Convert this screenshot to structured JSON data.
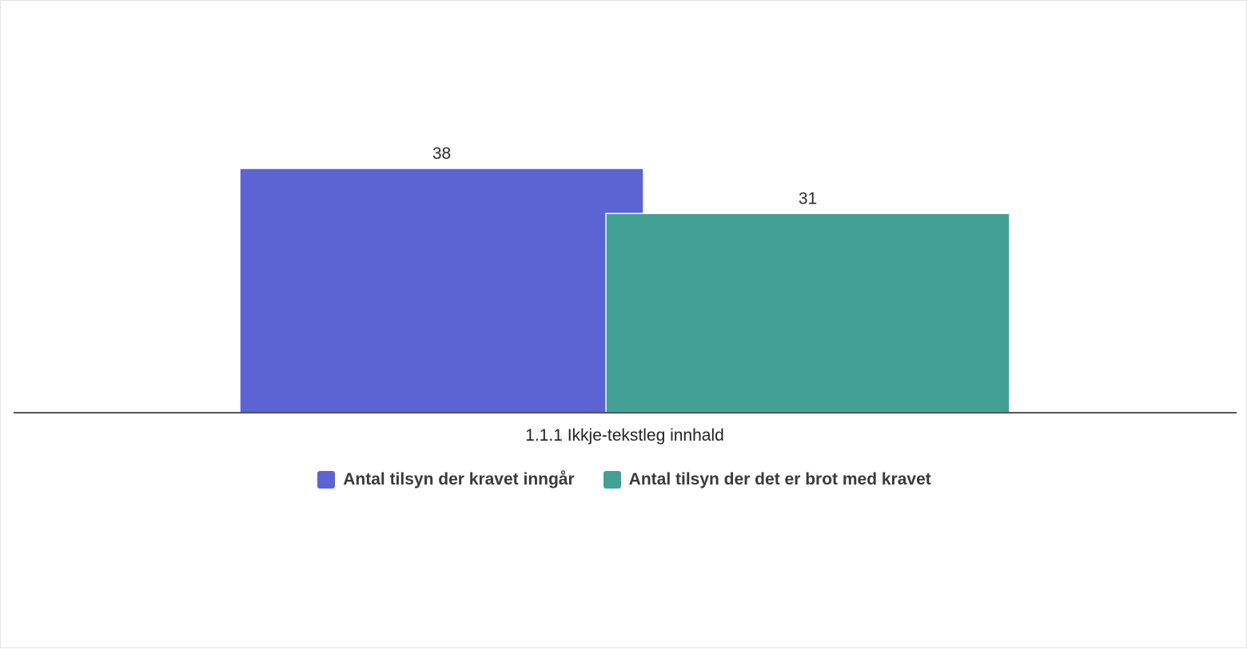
{
  "chart_data": {
    "type": "bar",
    "categories": [
      "1.1.1 Ikkje-tekstleg innhald"
    ],
    "series": [
      {
        "name": "Antal tilsyn der kravet inngår",
        "values": [
          38
        ],
        "color": "#5c63d2"
      },
      {
        "name": "Antal tilsyn der det er brot med kravet",
        "values": [
          31
        ],
        "color": "#43a094"
      }
    ],
    "title": "",
    "xlabel": "",
    "ylabel": "",
    "ylim": [
      0,
      38
    ],
    "grid": false,
    "legend_position": "bottom"
  }
}
